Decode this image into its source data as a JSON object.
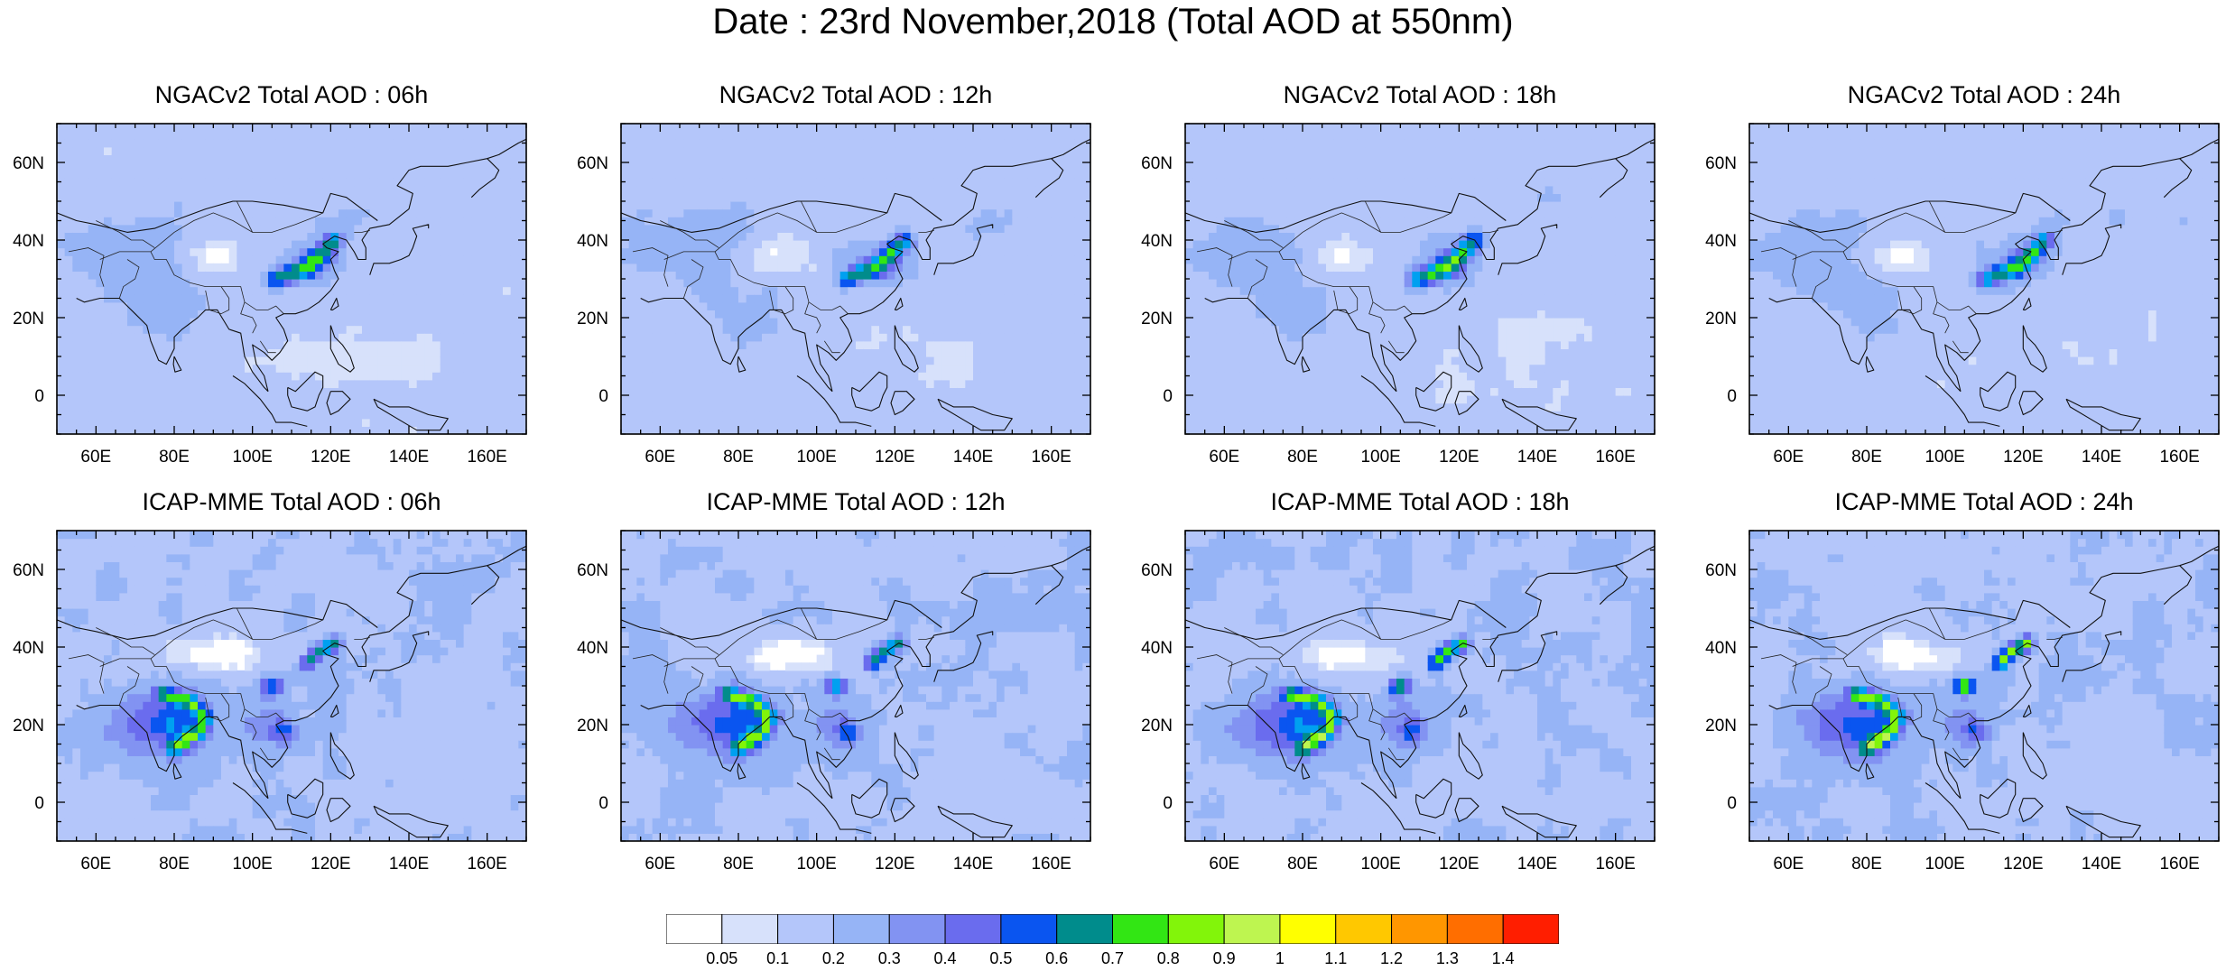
{
  "title": "Date : 23rd November,2018 (Total AOD at 550nm)",
  "panels": [
    {
      "title": "NGACv2 Total AOD : 06h"
    },
    {
      "title": "NGACv2 Total AOD : 12h"
    },
    {
      "title": "NGACv2 Total AOD : 18h"
    },
    {
      "title": "NGACv2 Total AOD : 24h"
    },
    {
      "title": "ICAP-MME Total AOD : 06h"
    },
    {
      "title": "ICAP-MME Total AOD : 12h"
    },
    {
      "title": "ICAP-MME Total AOD : 18h"
    },
    {
      "title": "ICAP-MME Total AOD : 24h"
    }
  ],
  "axes": {
    "lon_ticks": [
      "60E",
      "80E",
      "100E",
      "120E",
      "140E",
      "160E"
    ],
    "lat_ticks": [
      "60N",
      "40N",
      "20N",
      "0"
    ],
    "lon_range": [
      50,
      170
    ],
    "lat_range": [
      -10,
      70
    ]
  },
  "colorbar": {
    "colors": [
      "#ffffff",
      "#d7e1fb",
      "#b4c6fa",
      "#96b4f6",
      "#8293f2",
      "#6a6cee",
      "#0a55f0",
      "#00a0f0",
      "#008c8c",
      "#32e614",
      "#82f50a",
      "#bef550",
      "#ffff00",
      "#ffc800",
      "#ff9600",
      "#ff6e00",
      "#ff1e00"
    ],
    "labels": [
      "0.05",
      "0.1",
      "0.2",
      "0.3",
      "0.4",
      "0.5",
      "0.6",
      "0.7",
      "0.8",
      "0.9",
      "1",
      "1.1",
      "1.2",
      "1.3",
      "1.4"
    ]
  }
}
